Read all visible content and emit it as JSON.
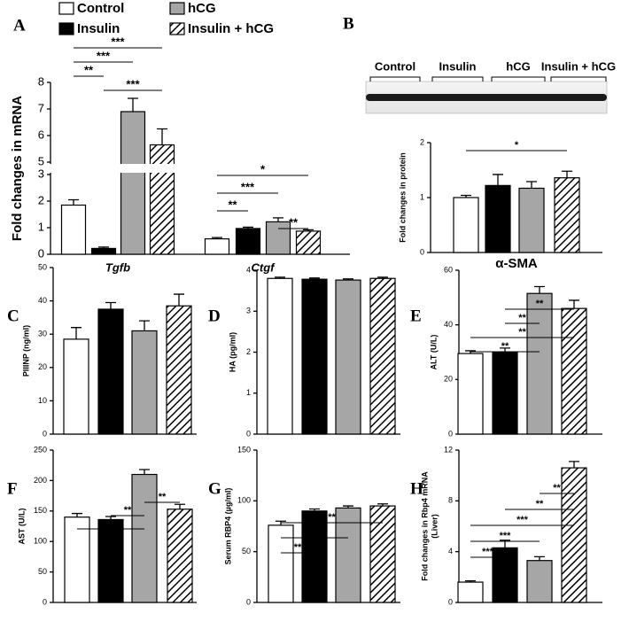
{
  "legend": {
    "entries": [
      {
        "name": "Control",
        "color": "#ffffff"
      },
      {
        "name": "Insulin",
        "color": "#000000"
      },
      {
        "name": "hCG",
        "color": "#a6a6a6"
      },
      {
        "name": "Insulin + hCG",
        "color": "#000000",
        "pattern": "diagonal"
      }
    ]
  },
  "chart_data": [
    {
      "type": "bar",
      "label": "A",
      "ylabel": "Fold changes in mRNA",
      "categories": [
        "Tgfb",
        "Ctgf"
      ],
      "series": [
        {
          "values": [
            1.85,
            0.58
          ],
          "errors": [
            0.2,
            0.05
          ]
        },
        {
          "values": [
            0.22,
            0.97
          ],
          "errors": [
            0.05,
            0.05
          ]
        },
        {
          "values": [
            6.9,
            1.22
          ],
          "errors": [
            0.5,
            0.15
          ]
        },
        {
          "values": [
            5.65,
            0.87
          ],
          "errors": [
            0.6,
            0.05
          ]
        }
      ],
      "ylim": [
        0,
        8
      ],
      "ybreak": [
        3,
        5
      ],
      "yticks": [
        0,
        1,
        2,
        3,
        5,
        6,
        7,
        8
      ],
      "significance": [
        {
          "label": "***",
          "group": 0,
          "bars": [
            0,
            3
          ]
        },
        {
          "label": "***",
          "group": 0,
          "bars": [
            0,
            2
          ]
        },
        {
          "label": "**",
          "group": 0,
          "bars": [
            0,
            1
          ]
        },
        {
          "label": "***",
          "group": 0,
          "bars": [
            1,
            3
          ]
        },
        {
          "label": "*",
          "group": 1,
          "bars": [
            0,
            3
          ]
        },
        {
          "label": "***",
          "group": 1,
          "bars": [
            0,
            2
          ]
        },
        {
          "label": "**",
          "group": 1,
          "bars": [
            0,
            1
          ]
        },
        {
          "label": "**",
          "group": 1,
          "bars": [
            2,
            3
          ]
        }
      ]
    },
    {
      "type": "bar",
      "label": "B",
      "ylabel": "Fold changes in protein",
      "xlabel": "α-SMA",
      "series": [
        {
          "values": [
            1.0
          ],
          "errors": [
            0.04
          ]
        },
        {
          "values": [
            1.22
          ],
          "errors": [
            0.2
          ]
        },
        {
          "values": [
            1.17
          ],
          "errors": [
            0.12
          ]
        },
        {
          "values": [
            1.36
          ],
          "errors": [
            0.12
          ]
        }
      ],
      "ylim": [
        0,
        2
      ],
      "yticks": [
        0,
        1,
        2
      ],
      "significance": [
        {
          "label": "*",
          "bars": [
            0,
            3
          ]
        }
      ]
    },
    {
      "type": "bar",
      "label": "C",
      "ylabel": "PIIINP (ng/ml)",
      "series": [
        {
          "values": [
            28.5
          ],
          "errors": [
            3.5
          ]
        },
        {
          "values": [
            37.5
          ],
          "errors": [
            2
          ]
        },
        {
          "values": [
            31
          ],
          "errors": [
            3
          ]
        },
        {
          "values": [
            38.5
          ],
          "errors": [
            3.5
          ]
        }
      ],
      "ylim": [
        0,
        50
      ],
      "yticks": [
        0,
        10,
        20,
        30,
        40,
        50
      ],
      "significance": []
    },
    {
      "type": "bar",
      "label": "D",
      "ylabel": "HA (pg/ml)",
      "series": [
        {
          "values": [
            3.8
          ],
          "errors": [
            0.03
          ]
        },
        {
          "values": [
            3.78
          ],
          "errors": [
            0.03
          ]
        },
        {
          "values": [
            3.76
          ],
          "errors": [
            0.03
          ]
        },
        {
          "values": [
            3.8
          ],
          "errors": [
            0.03
          ]
        }
      ],
      "ylim": [
        0,
        4
      ],
      "yticks": [
        0,
        1,
        2,
        3,
        4
      ],
      "significance": []
    },
    {
      "type": "bar",
      "label": "E",
      "ylabel": "ALT (U/L)",
      "series": [
        {
          "values": [
            29.5
          ],
          "errors": [
            1
          ]
        },
        {
          "values": [
            30
          ],
          "errors": [
            1.5
          ]
        },
        {
          "values": [
            51.5
          ],
          "errors": [
            2.5
          ]
        },
        {
          "values": [
            46
          ],
          "errors": [
            3
          ]
        }
      ],
      "ylim": [
        0,
        60
      ],
      "yticks": [
        0,
        20,
        40,
        60
      ],
      "significance": [
        {
          "label": "**",
          "bars": [
            1,
            3
          ]
        },
        {
          "label": "**",
          "bars": [
            1,
            2
          ]
        },
        {
          "label": "**",
          "bars": [
            0,
            3
          ]
        },
        {
          "label": "**",
          "bars": [
            0,
            2
          ]
        }
      ]
    },
    {
      "type": "bar",
      "label": "F",
      "ylabel": "AST (U/L)",
      "series": [
        {
          "values": [
            140
          ],
          "errors": [
            6
          ]
        },
        {
          "values": [
            136
          ],
          "errors": [
            5
          ]
        },
        {
          "values": [
            210
          ],
          "errors": [
            8
          ]
        },
        {
          "values": [
            153
          ],
          "errors": [
            8
          ]
        }
      ],
      "ylim": [
        0,
        250
      ],
      "yticks": [
        0,
        50,
        100,
        150,
        200,
        250
      ],
      "significance": [
        {
          "label": "**",
          "bars": [
            2,
            3
          ]
        },
        {
          "label": "**",
          "bars": [
            1,
            2
          ]
        },
        {
          "label": "**",
          "bars": [
            0,
            2
          ]
        }
      ]
    },
    {
      "type": "bar",
      "label": "G",
      "ylabel": "Serum RBP4 (µg/ml)",
      "series": [
        {
          "values": [
            76
          ],
          "errors": [
            4
          ]
        },
        {
          "values": [
            90
          ],
          "errors": [
            2
          ]
        },
        {
          "values": [
            93
          ],
          "errors": [
            2
          ]
        },
        {
          "values": [
            95
          ],
          "errors": [
            2
          ]
        }
      ],
      "ylim": [
        0,
        150
      ],
      "yticks": [
        0,
        50,
        100,
        150
      ],
      "significance": [
        {
          "label": "**",
          "bars": [
            0,
            3
          ]
        },
        {
          "label": "**",
          "bars": [
            0,
            2
          ]
        },
        {
          "label": "**",
          "bars": [
            0,
            1
          ]
        }
      ]
    },
    {
      "type": "bar",
      "label": "H",
      "ylabel": [
        "Fold changes in Rbp4 mRNA",
        "(Liver)"
      ],
      "series": [
        {
          "values": [
            1.6
          ],
          "errors": [
            0.1
          ]
        },
        {
          "values": [
            4.3
          ],
          "errors": [
            0.6
          ]
        },
        {
          "values": [
            3.3
          ],
          "errors": [
            0.3
          ]
        },
        {
          "values": [
            10.6
          ],
          "errors": [
            0.5
          ]
        }
      ],
      "ylim": [
        0,
        12
      ],
      "yticks": [
        0,
        4,
        8,
        12
      ],
      "significance": [
        {
          "label": "**",
          "bars": [
            2,
            3
          ]
        },
        {
          "label": "**",
          "bars": [
            1,
            3
          ]
        },
        {
          "label": "***",
          "bars": [
            0,
            3
          ]
        },
        {
          "label": "***",
          "bars": [
            0,
            2
          ]
        },
        {
          "label": "***",
          "bars": [
            0,
            1
          ]
        }
      ]
    }
  ]
}
